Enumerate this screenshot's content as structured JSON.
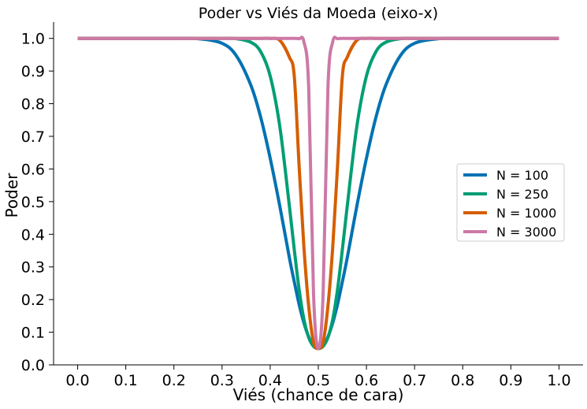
{
  "chart_data": {
    "type": "line",
    "title": "Poder vs Viés da Moeda (eixo-x)",
    "xlabel": "Viés (chance de cara)",
    "ylabel": "Poder",
    "xlim": [
      -0.05,
      1.05
    ],
    "ylim": [
      0.0,
      1.05
    ],
    "xticks": [
      0.0,
      0.1,
      0.2,
      0.3,
      0.4,
      0.5,
      0.6,
      0.7,
      0.8,
      0.9,
      1.0
    ],
    "xtick_labels": [
      "0.0",
      "0.1",
      "0.2",
      "0.3",
      "0.4",
      "0.5",
      "0.6",
      "0.7",
      "0.8",
      "0.9",
      "1.0"
    ],
    "yticks": [
      0.0,
      0.1,
      0.2,
      0.3,
      0.4,
      0.5,
      0.6,
      0.7,
      0.8,
      0.9,
      1.0
    ],
    "ytick_labels": [
      "0.0",
      "0.1",
      "0.2",
      "0.3",
      "0.4",
      "0.5",
      "0.6",
      "0.7",
      "0.8",
      "0.9",
      "1.0"
    ],
    "grid": false,
    "legend_position": "center-right",
    "x": [
      0.0,
      0.1,
      0.2,
      0.25,
      0.3,
      0.33,
      0.36,
      0.38,
      0.4,
      0.42,
      0.44,
      0.45,
      0.46,
      0.47,
      0.48,
      0.49,
      0.5,
      0.51,
      0.52,
      0.53,
      0.54,
      0.55,
      0.56,
      0.58,
      0.6,
      0.62,
      0.64,
      0.67,
      0.7,
      0.75,
      0.8,
      0.9,
      1.0
    ],
    "series": [
      {
        "name": "N = 100",
        "color": "#0072b2",
        "values": [
          1.0,
          1.0,
          1.0,
          0.999,
          0.985,
          0.946,
          0.856,
          0.76,
          0.633,
          0.486,
          0.327,
          0.255,
          0.186,
          0.129,
          0.086,
          0.059,
          0.05,
          0.059,
          0.086,
          0.129,
          0.186,
          0.255,
          0.327,
          0.486,
          0.633,
          0.76,
          0.856,
          0.946,
          0.985,
          0.999,
          1.0,
          1.0,
          1.0
        ]
      },
      {
        "name": "N = 250",
        "color": "#009e73",
        "values": [
          1.0,
          1.0,
          1.0,
          1.0,
          1.0,
          0.999,
          0.988,
          0.96,
          0.885,
          0.73,
          0.485,
          0.354,
          0.232,
          0.14,
          0.084,
          0.057,
          0.05,
          0.057,
          0.084,
          0.14,
          0.232,
          0.354,
          0.485,
          0.73,
          0.885,
          0.96,
          0.988,
          0.999,
          1.0,
          1.0,
          1.0,
          1.0,
          1.0
        ]
      },
      {
        "name": "N = 1000",
        "color": "#d55e00",
        "values": [
          1.0,
          1.0,
          1.0,
          1.0,
          1.0,
          1.0,
          1.0,
          1.0,
          1.0,
          0.994,
          0.942,
          0.885,
          0.612,
          0.362,
          0.18,
          0.07,
          0.05,
          0.07,
          0.18,
          0.362,
          0.612,
          0.885,
          0.942,
          0.994,
          1.0,
          1.0,
          1.0,
          1.0,
          1.0,
          1.0,
          1.0,
          1.0,
          1.0
        ]
      },
      {
        "name": "N = 3000",
        "color": "#cc79a7",
        "values": [
          1.0,
          1.0,
          1.0,
          1.0,
          1.0,
          1.0,
          1.0,
          1.0,
          1.0,
          1.0,
          1.0,
          1.0,
          0.999,
          0.99,
          0.85,
          0.22,
          0.05,
          0.22,
          0.85,
          0.99,
          0.999,
          1.0,
          1.0,
          1.0,
          1.0,
          1.0,
          1.0,
          1.0,
          1.0,
          1.0,
          1.0,
          1.0,
          1.0
        ]
      }
    ]
  }
}
